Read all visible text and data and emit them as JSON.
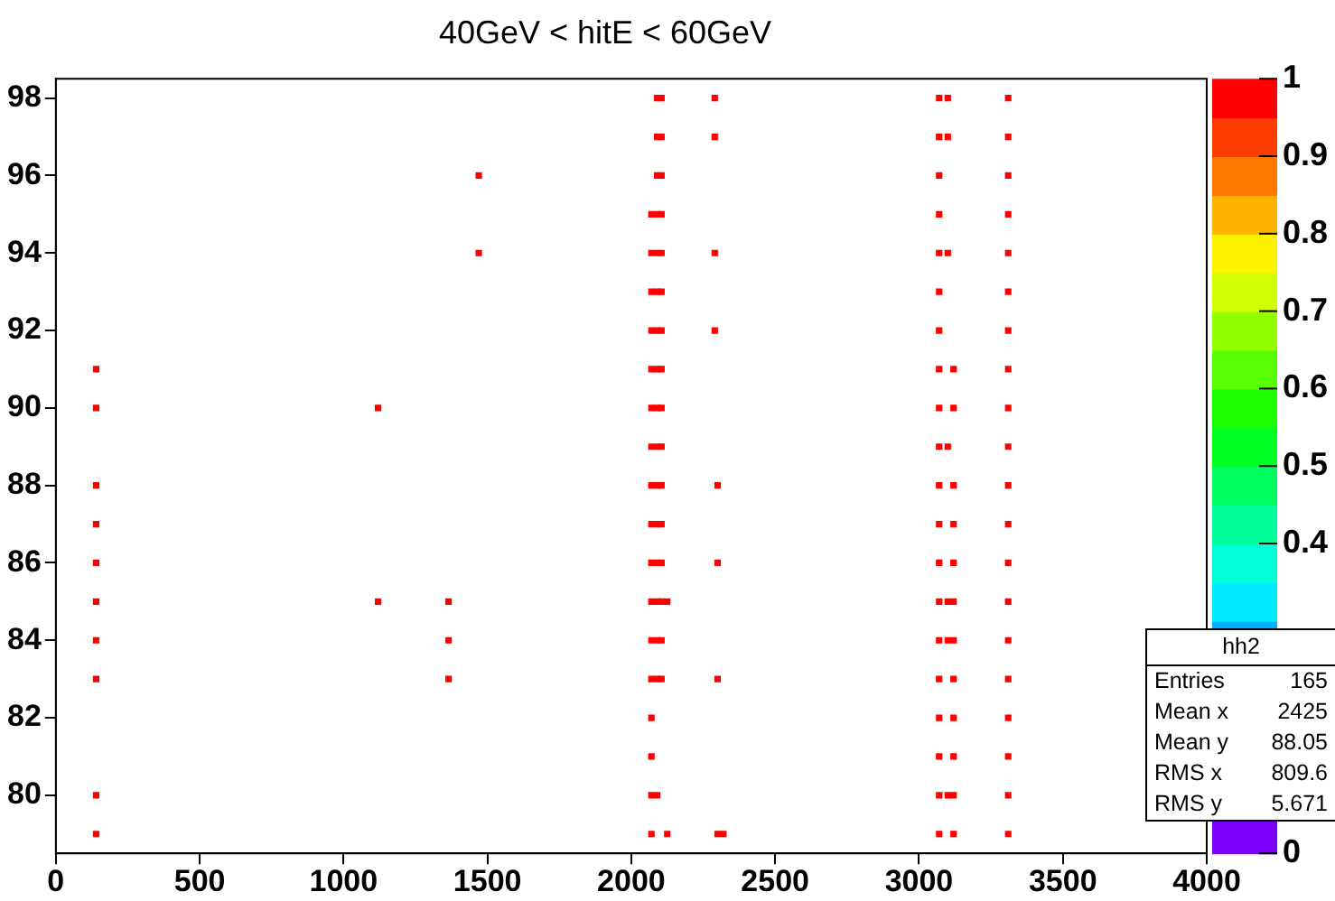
{
  "chart_data": {
    "type": "scatter",
    "title": "40GeV < hitE < 60GeV",
    "xlim": [
      0,
      4000
    ],
    "xticks": [
      0,
      500,
      1000,
      1500,
      2000,
      2500,
      3000,
      3500,
      4000
    ],
    "ylim": [
      78.5,
      98.5
    ],
    "yticks": [
      80,
      82,
      84,
      86,
      88,
      90,
      92,
      94,
      96,
      98
    ],
    "clim": [
      0,
      1
    ],
    "cticks": [
      0,
      0.4,
      0.5,
      0.6,
      0.7,
      0.8,
      0.9,
      1
    ],
    "grid": false,
    "marker": "square",
    "series": [
      {
        "color": "#ff0000",
        "x": [
          140,
          140,
          140,
          140,
          140,
          140,
          140,
          140,
          140,
          140
        ],
        "values": [
          79,
          80,
          83,
          84,
          85,
          86,
          87,
          88,
          90,
          91
        ]
      },
      {
        "color": "#ff0000",
        "x": [
          1120,
          1120
        ],
        "values": [
          85,
          90
        ]
      },
      {
        "color": "#ff0000",
        "x": [
          1365,
          1365,
          1365
        ],
        "values": [
          83,
          84,
          85
        ]
      },
      {
        "color": "#ff0000",
        "x": [
          1470,
          1470
        ],
        "values": [
          94,
          96
        ]
      },
      {
        "color": "#ff0000",
        "x": [
          2070,
          2070,
          2070,
          2070,
          2070,
          2070,
          2070,
          2070,
          2070,
          2070,
          2070,
          2070,
          2070,
          2070,
          2070,
          2070,
          2070
        ],
        "values": [
          79,
          80,
          81,
          82,
          83,
          84,
          85,
          86,
          87,
          88,
          89,
          90,
          91,
          92,
          93,
          94,
          95
        ]
      },
      {
        "color": "#ff0000",
        "x": [
          2090,
          2090,
          2090,
          2090,
          2090,
          2090,
          2090,
          2090,
          2090,
          2090,
          2090,
          2090,
          2090,
          2090,
          2090,
          2090,
          2090
        ],
        "values": [
          80,
          83,
          84,
          85,
          86,
          87,
          88,
          89,
          90,
          91,
          92,
          93,
          94,
          95,
          96,
          97,
          98
        ]
      },
      {
        "color": "#ff0000",
        "x": [
          2105,
          2105,
          2105,
          2105,
          2105,
          2105,
          2105,
          2105,
          2105,
          2105,
          2105,
          2105,
          2105,
          2105,
          2105,
          2105
        ],
        "values": [
          83,
          84,
          85,
          86,
          87,
          88,
          89,
          90,
          91,
          92,
          93,
          94,
          95,
          96,
          97,
          98
        ]
      },
      {
        "color": "#ff0000",
        "x": [
          2125,
          2125
        ],
        "values": [
          79,
          85
        ]
      },
      {
        "color": "#ff0000",
        "x": [
          2290,
          2290,
          2290,
          2290
        ],
        "values": [
          92,
          94,
          97,
          98
        ]
      },
      {
        "color": "#ff0000",
        "x": [
          2300,
          2300,
          2300,
          2300
        ],
        "values": [
          79,
          83,
          86,
          88
        ]
      },
      {
        "color": "#ff0000",
        "x": [
          2320
        ],
        "values": [
          79
        ]
      },
      {
        "color": "#ff0000",
        "x": [
          3070,
          3070,
          3070,
          3070,
          3070,
          3070,
          3070,
          3070,
          3070,
          3070,
          3070,
          3070,
          3070,
          3070,
          3070,
          3070,
          3070,
          3070,
          3070,
          3070
        ],
        "values": [
          79,
          80,
          81,
          82,
          83,
          84,
          85,
          86,
          87,
          88,
          89,
          90,
          91,
          92,
          93,
          94,
          95,
          96,
          97,
          98
        ]
      },
      {
        "color": "#ff0000",
        "x": [
          3100,
          3100,
          3100,
          3100,
          3100,
          3100,
          3100
        ],
        "values": [
          80,
          84,
          85,
          89,
          94,
          97,
          98
        ]
      },
      {
        "color": "#ff0000",
        "x": [
          3120,
          3120,
          3120,
          3120,
          3120,
          3120,
          3120,
          3120,
          3120,
          3120,
          3120,
          3120
        ],
        "values": [
          79,
          80,
          81,
          82,
          83,
          84,
          85,
          86,
          87,
          88,
          90,
          91
        ]
      },
      {
        "color": "#ff0000",
        "x": [
          3310,
          3310,
          3310,
          3310,
          3310,
          3310,
          3310,
          3310,
          3310,
          3310,
          3310,
          3310,
          3310,
          3310,
          3310,
          3310,
          3310,
          3310,
          3310,
          3310
        ],
        "values": [
          79,
          80,
          81,
          82,
          83,
          84,
          85,
          86,
          87,
          88,
          89,
          90,
          91,
          92,
          93,
          94,
          95,
          96,
          97,
          98
        ]
      }
    ],
    "annotations": [
      "hh2",
      "Entries",
      "165",
      "Mean x",
      "2425",
      "Mean y",
      "88.05",
      "RMS x",
      "809.6",
      "RMS y",
      "5.671"
    ]
  }
}
